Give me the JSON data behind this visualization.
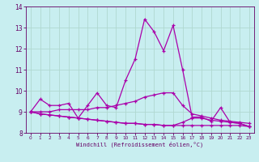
{
  "xlabel": "Windchill (Refroidissement éolien,°C)",
  "ylabel": "",
  "bg_color": "#c8eef0",
  "grid_color": "#b0d8d0",
  "line_color": "#aa00aa",
  "xlim": [
    -0.5,
    23.5
  ],
  "ylim": [
    8,
    14
  ],
  "yticks": [
    8,
    9,
    10,
    11,
    12,
    13,
    14
  ],
  "xticks": [
    0,
    1,
    2,
    3,
    4,
    5,
    6,
    7,
    8,
    9,
    10,
    11,
    12,
    13,
    14,
    15,
    16,
    17,
    18,
    19,
    20,
    21,
    22,
    23
  ],
  "series": [
    [
      9.0,
      9.6,
      9.3,
      9.3,
      9.4,
      8.7,
      9.3,
      9.9,
      9.3,
      9.2,
      10.5,
      11.5,
      13.4,
      12.8,
      11.9,
      13.1,
      11.0,
      8.75,
      8.75,
      8.55,
      9.2,
      8.5,
      8.45,
      8.3
    ],
    [
      9.0,
      9.0,
      9.0,
      9.1,
      9.1,
      9.1,
      9.1,
      9.2,
      9.2,
      9.3,
      9.4,
      9.5,
      9.7,
      9.8,
      9.9,
      9.9,
      9.3,
      8.9,
      8.8,
      8.7,
      8.6,
      8.55,
      8.5,
      8.45
    ],
    [
      9.0,
      8.9,
      8.85,
      8.8,
      8.75,
      8.7,
      8.65,
      8.6,
      8.55,
      8.5,
      8.45,
      8.45,
      8.4,
      8.4,
      8.35,
      8.35,
      8.5,
      8.7,
      8.7,
      8.6,
      8.55,
      8.5,
      8.45,
      8.3
    ],
    [
      9.0,
      8.9,
      8.85,
      8.8,
      8.75,
      8.7,
      8.65,
      8.6,
      8.55,
      8.5,
      8.45,
      8.45,
      8.4,
      8.4,
      8.35,
      8.35,
      8.35,
      8.35,
      8.35,
      8.35,
      8.35,
      8.35,
      8.35,
      8.3
    ]
  ]
}
